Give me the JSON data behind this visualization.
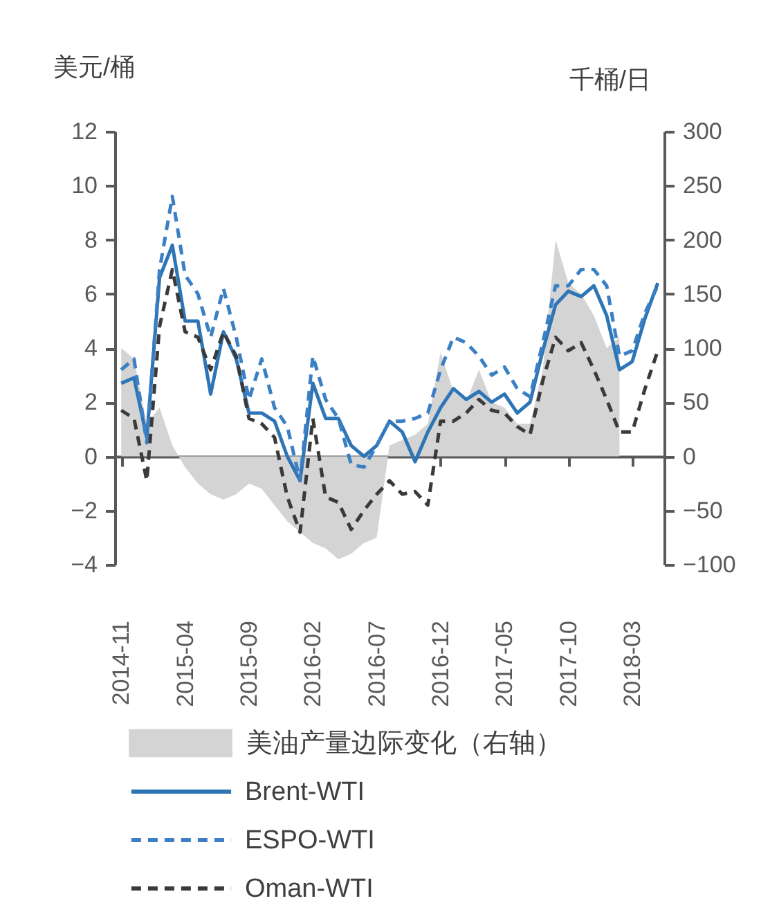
{
  "chart_data": {
    "type": "line",
    "ylabel": "美元/桶",
    "y2label": "千桶/日",
    "legend": "bottom",
    "categories": [
      "2014-11",
      null,
      null,
      null,
      null,
      "2015-04",
      null,
      null,
      null,
      null,
      "2015-09",
      null,
      null,
      null,
      null,
      "2016-02",
      null,
      null,
      null,
      null,
      "2016-07",
      null,
      null,
      null,
      null,
      "2016-12",
      null,
      null,
      null,
      null,
      "2017-05",
      null,
      null,
      null,
      null,
      "2017-10",
      null,
      null,
      null,
      null,
      "2018-03",
      null,
      null
    ],
    "ylim": [
      -4,
      12
    ],
    "yticks": [
      -4,
      -2,
      0,
      2,
      4,
      6,
      8,
      10,
      12
    ],
    "y2lim": [
      -100,
      300
    ],
    "y2ticks": [
      -100,
      -50,
      0,
      50,
      100,
      150,
      200,
      250,
      300
    ],
    "series": [
      {
        "name": "美油产量边际变化（右轴）",
        "type": "area",
        "axis": "y2",
        "color": "#d4d4d4",
        "values": [
          100,
          90,
          30,
          45,
          10,
          -10,
          -25,
          -35,
          -40,
          -35,
          -25,
          -30,
          -45,
          -60,
          -70,
          -80,
          -85,
          -95,
          -90,
          -80,
          -75,
          10,
          15,
          20,
          30,
          96,
          60,
          50,
          80,
          50,
          45,
          30,
          30,
          80,
          200,
          160,
          150,
          130,
          100,
          110,
          null,
          null,
          null
        ]
      },
      {
        "name": "Brent-WTI",
        "type": "line",
        "line_style": "solid",
        "color": "#2e75b6",
        "values": [
          2.7,
          2.9,
          0.7,
          6.6,
          7.8,
          5.0,
          5.0,
          2.3,
          4.6,
          3.6,
          1.6,
          1.6,
          1.3,
          0,
          -0.9,
          2.7,
          1.4,
          1.4,
          0.4,
          0,
          0.4,
          1.3,
          0.9,
          -0.2,
          0.9,
          1.8,
          2.5,
          2.1,
          2.4,
          2.0,
          2.3,
          1.6,
          2.0,
          3.9,
          5.6,
          6.1,
          5.9,
          6.3,
          5.2,
          3.2,
          3.5,
          5.1,
          6.4
        ]
      },
      {
        "name": "ESPO-WTI",
        "type": "line",
        "line_style": "dashed",
        "color": "#3b7fc4",
        "values": [
          3.2,
          3.6,
          0.5,
          6.9,
          9.6,
          6.7,
          6.0,
          4.4,
          6.2,
          4.4,
          2.1,
          3.6,
          1.8,
          1.1,
          -0.9,
          3.7,
          2.1,
          1.4,
          -0.3,
          -0.4,
          0.4,
          1.3,
          1.3,
          1.4,
          1.6,
          3.2,
          4.4,
          4.2,
          3.7,
          3.0,
          3.3,
          2.5,
          2.2,
          4.2,
          6.3,
          6.3,
          6.9,
          6.9,
          6.3,
          3.7,
          3.9,
          5.3,
          6.3
        ]
      },
      {
        "name": "Oman-WTI",
        "type": "line",
        "line_style": "dashed",
        "color": "#3a3a3a",
        "values": [
          1.7,
          1.4,
          -0.9,
          4.8,
          6.9,
          4.6,
          4.4,
          3.2,
          4.6,
          3.7,
          1.4,
          1.2,
          0.7,
          -1.5,
          -2.8,
          1.4,
          -1.5,
          -1.7,
          -2.7,
          -2.0,
          -1.4,
          -0.9,
          -1.4,
          -1.3,
          -1.8,
          1.3,
          1.3,
          1.6,
          2.1,
          1.7,
          1.6,
          1.1,
          0.8,
          2.8,
          4.4,
          3.9,
          4.2,
          3.2,
          2.1,
          0.9,
          0.9,
          2.5,
          3.9
        ]
      }
    ]
  }
}
